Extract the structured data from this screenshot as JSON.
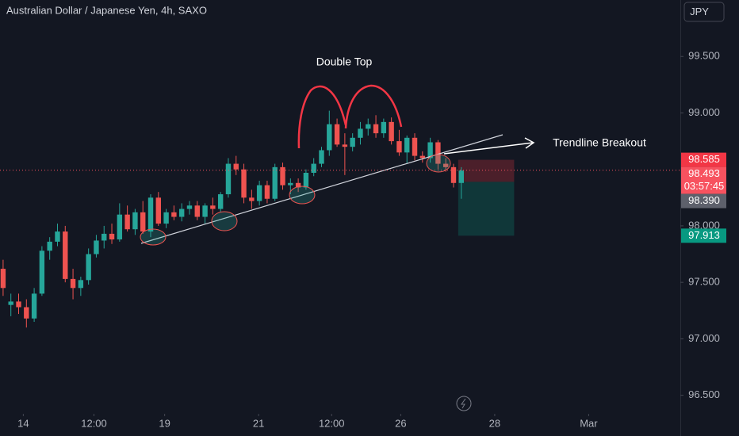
{
  "chart_data": {
    "type": "candlestick",
    "title": "Australian Dollar / Japanese Yen, 4h, SAXO",
    "currency": "JPY",
    "x": [
      0,
      1,
      2,
      3,
      4,
      5,
      6,
      7,
      8,
      9,
      10,
      11,
      12,
      13,
      14,
      15,
      16,
      17,
      18,
      19,
      20,
      21,
      22,
      23,
      24,
      25,
      26,
      27,
      28,
      29,
      30,
      31,
      32,
      33,
      34,
      35,
      36,
      37,
      38,
      39,
      40,
      41,
      42,
      43,
      44,
      45,
      46,
      47,
      48,
      49,
      50,
      51,
      52,
      53,
      54,
      55,
      56,
      57,
      58,
      59
    ],
    "open": [
      97.62,
      97.3,
      97.33,
      97.28,
      97.18,
      97.4,
      97.78,
      97.86,
      97.95,
      97.53,
      97.45,
      97.52,
      97.75,
      97.87,
      97.93,
      97.88,
      98.1,
      97.97,
      98.12,
      97.95,
      98.25,
      98.02,
      98.12,
      98.08,
      98.15,
      98.18,
      98.08,
      98.18,
      98.15,
      98.28,
      98.55,
      98.5,
      98.25,
      98.22,
      98.36,
      98.24,
      98.52,
      98.36,
      98.38,
      98.34,
      98.47,
      98.55,
      98.67,
      98.9,
      98.72,
      98.7,
      98.78,
      98.86,
      98.9,
      98.82,
      98.92,
      98.75,
      98.65,
      98.78,
      98.62,
      98.6,
      98.74,
      98.55,
      98.52,
      98.38
    ],
    "high": [
      97.7,
      97.4,
      97.4,
      97.35,
      97.45,
      97.82,
      97.9,
      98.02,
      98.0,
      97.62,
      97.55,
      97.8,
      97.92,
      98.0,
      98.02,
      98.2,
      98.18,
      98.15,
      98.22,
      98.28,
      98.3,
      98.15,
      98.18,
      98.2,
      98.22,
      98.22,
      98.2,
      98.25,
      98.3,
      98.6,
      98.62,
      98.55,
      98.32,
      98.4,
      98.4,
      98.55,
      98.56,
      98.42,
      98.42,
      98.5,
      98.6,
      98.7,
      99.02,
      98.95,
      98.82,
      98.82,
      98.92,
      98.95,
      98.98,
      98.95,
      98.96,
      98.85,
      98.8,
      98.82,
      98.66,
      98.78,
      98.76,
      98.6,
      98.55,
      98.52
    ],
    "low": [
      97.38,
      97.2,
      97.22,
      97.1,
      97.15,
      97.38,
      97.7,
      97.82,
      97.5,
      97.35,
      97.38,
      97.48,
      97.72,
      97.8,
      97.84,
      97.86,
      97.95,
      97.92,
      97.93,
      97.9,
      98.0,
      97.98,
      98.05,
      98.04,
      98.1,
      98.05,
      98.02,
      98.1,
      98.12,
      98.25,
      98.45,
      98.2,
      98.15,
      98.18,
      98.2,
      98.22,
      98.32,
      98.28,
      98.3,
      98.32,
      98.44,
      98.52,
      98.62,
      98.7,
      98.45,
      98.66,
      98.72,
      98.8,
      98.78,
      98.78,
      98.72,
      98.62,
      98.55,
      98.58,
      98.56,
      98.56,
      98.5,
      98.48,
      98.34,
      98.24
    ],
    "close": [
      97.45,
      97.33,
      97.28,
      97.18,
      97.4,
      97.78,
      97.86,
      97.95,
      97.53,
      97.45,
      97.52,
      97.75,
      97.87,
      97.93,
      97.88,
      98.1,
      97.97,
      98.12,
      97.95,
      98.25,
      98.02,
      98.12,
      98.08,
      98.15,
      98.18,
      98.08,
      98.18,
      98.15,
      98.28,
      98.55,
      98.5,
      98.25,
      98.22,
      98.36,
      98.24,
      98.52,
      98.36,
      98.38,
      98.34,
      98.47,
      98.55,
      98.67,
      98.9,
      98.72,
      98.7,
      98.78,
      98.86,
      98.9,
      98.82,
      98.92,
      98.75,
      98.65,
      98.78,
      98.62,
      98.6,
      98.74,
      98.55,
      98.52,
      98.38,
      98.49
    ],
    "up_color": "#26a69a",
    "down_color": "#ef5350",
    "xlim": [
      -0.4,
      87.2
    ],
    "ylim": [
      96.35,
      100.0
    ],
    "xticks": [
      {
        "value": 2.6,
        "label": "14"
      },
      {
        "value": 11.7,
        "label": "12:00"
      },
      {
        "value": 20.8,
        "label": "19"
      },
      {
        "value": 32.9,
        "label": "21"
      },
      {
        "value": 42.3,
        "label": "12:00"
      },
      {
        "value": 51.2,
        "label": "26"
      },
      {
        "value": 63.3,
        "label": "28"
      },
      {
        "value": 75.4,
        "label": "Mar"
      }
    ],
    "yticks": [
      {
        "value": 96.5,
        "label": "96.500"
      },
      {
        "value": 97,
        "label": "97.000"
      },
      {
        "value": 97.5,
        "label": "97.500"
      },
      {
        "value": 98,
        "label": "98.000"
      },
      {
        "value": 99,
        "label": "99.000"
      },
      {
        "value": 99.5,
        "label": "99.500"
      }
    ],
    "annotations": [
      "Double Top",
      "Trendline Breakout"
    ],
    "price_labels": [
      {
        "value": 98.585,
        "label": "98.585",
        "color": "#f23645"
      },
      {
        "value": 98.493,
        "label": "98.493",
        "color": "#f7525f",
        "countdown": "03:57:45"
      },
      {
        "value": 98.39,
        "label": "98.390",
        "color": "#5d606b"
      },
      {
        "value": 97.913,
        "label": "97.913",
        "color": "#089981"
      }
    ],
    "position": {
      "stop": 98.585,
      "entry": 98.39,
      "target": 97.913,
      "start": 58.6,
      "end": 65.8
    }
  }
}
